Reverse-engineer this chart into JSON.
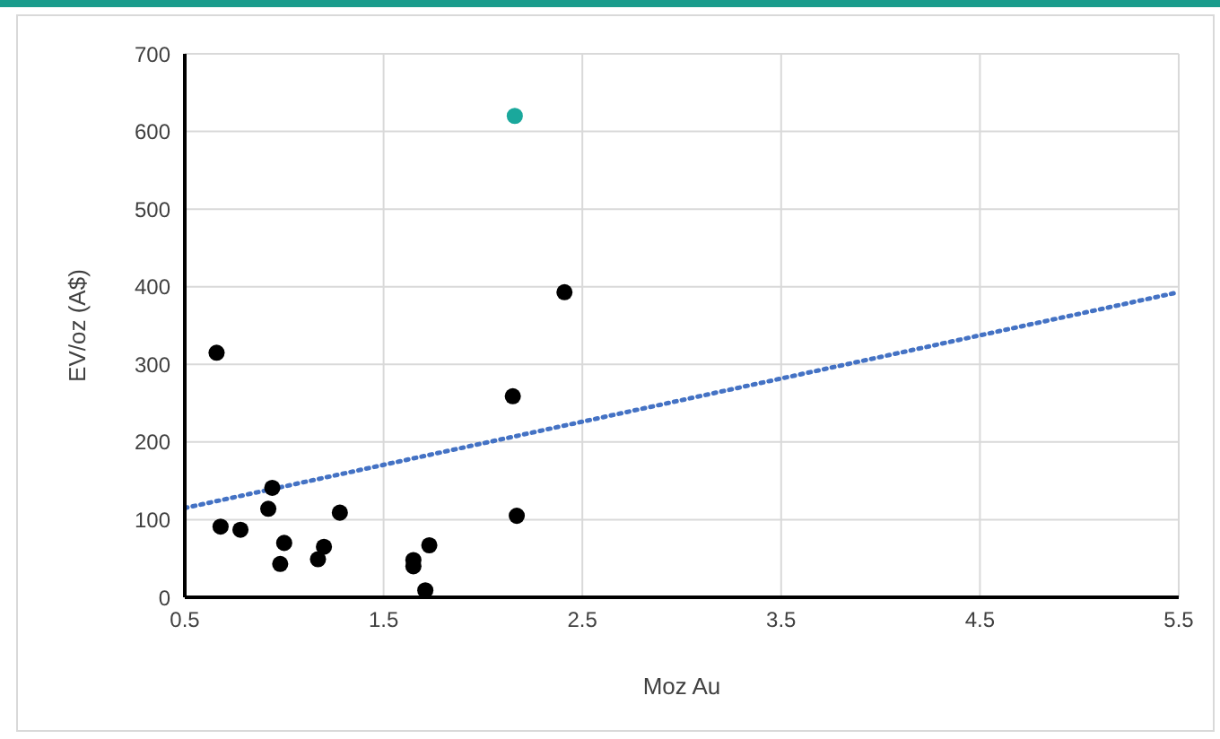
{
  "chart_data": {
    "type": "scatter",
    "xlabel": "Moz Au",
    "ylabel": "EV/oz (A$)",
    "xlim": [
      0.5,
      5.5
    ],
    "xticks": [
      0.5,
      1.5,
      2.5,
      3.5,
      4.5,
      5.5
    ],
    "ylim": [
      0,
      700
    ],
    "yticks": [
      0,
      100,
      200,
      300,
      400,
      500,
      600,
      700
    ],
    "grid": true,
    "legend": false,
    "marker": "circle",
    "series": [
      {
        "color": "#000000",
        "x": [
          0.66,
          0.68,
          0.78,
          0.94,
          0.92,
          1.0,
          0.98,
          1.2,
          1.17,
          1.28,
          1.65,
          1.65,
          1.73,
          1.71,
          2.15,
          2.17,
          2.41
        ],
        "values": [
          315,
          91,
          87,
          141,
          114,
          70,
          43,
          65,
          49,
          109,
          48,
          40,
          67,
          9,
          259,
          105,
          393
        ]
      },
      {
        "color": "#1aa89c",
        "x": [
          2.16
        ],
        "values": [
          620
        ]
      },
      {
        "type": "line",
        "color": "#4472c4",
        "line_style": "dotted",
        "marker": "none",
        "x": [
          0.5,
          5.5
        ],
        "values": [
          115,
          393
        ]
      }
    ]
  }
}
